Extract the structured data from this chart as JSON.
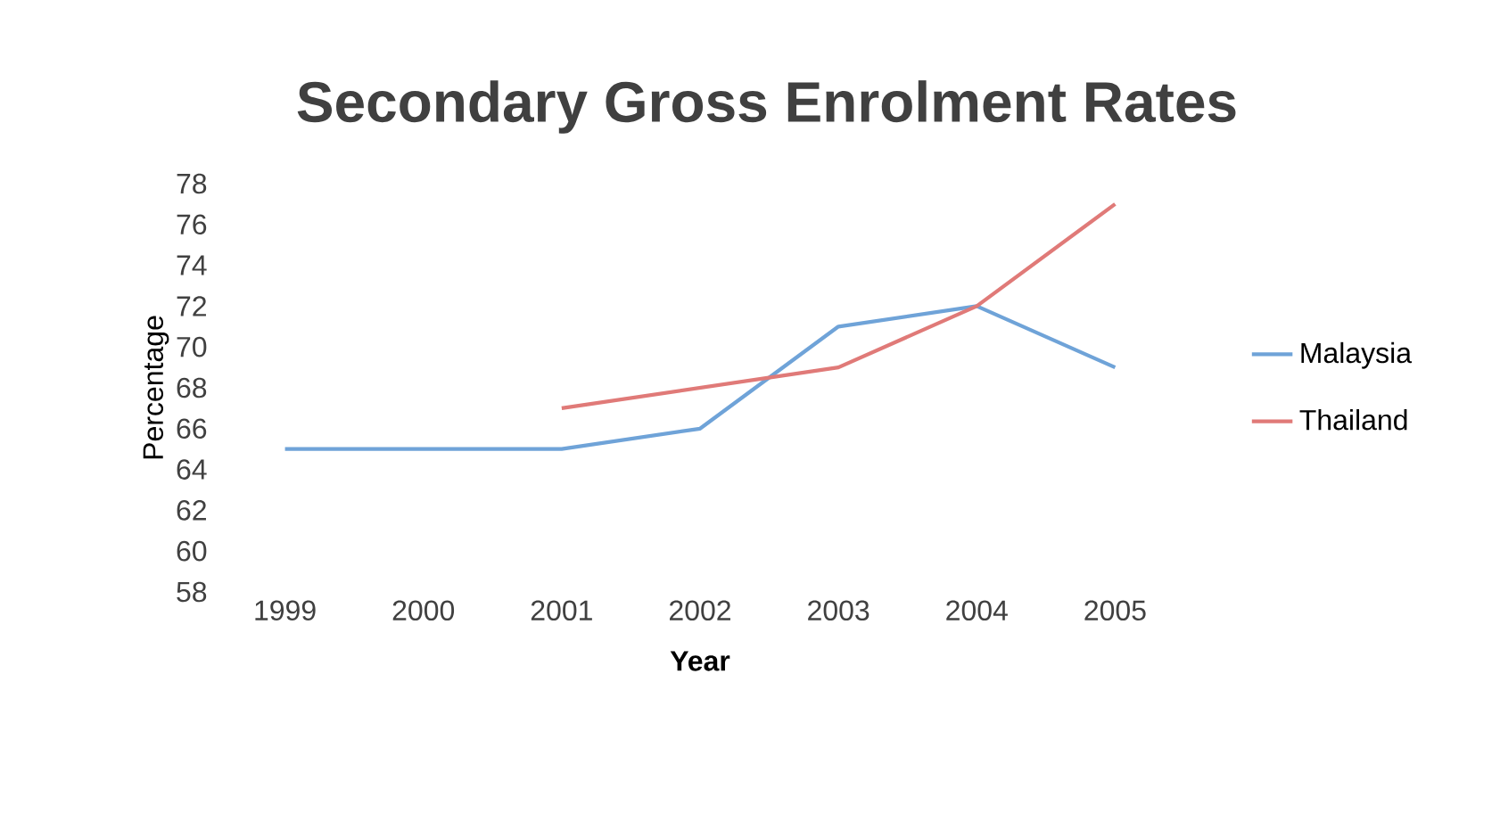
{
  "chart_data": {
    "type": "line",
    "title": "Secondary Gross Enrolment Rates",
    "xlabel": "Year",
    "ylabel": "Percentage",
    "categories": [
      "1999",
      "2000",
      "2001",
      "2002",
      "2003",
      "2004",
      "2005"
    ],
    "series": [
      {
        "name": "Malaysia",
        "color": "#6fa3d8",
        "values": [
          65,
          65,
          65,
          66,
          71,
          72,
          69
        ]
      },
      {
        "name": "Thailand",
        "color": "#e07a78",
        "values": [
          null,
          null,
          67,
          68,
          69,
          72,
          77
        ]
      }
    ],
    "ylim": [
      58,
      78
    ],
    "yticks": [
      58,
      60,
      62,
      64,
      66,
      68,
      70,
      72,
      74,
      76,
      78
    ],
    "grid": false,
    "legend": "right",
    "marker": "none",
    "line_style": "solid"
  }
}
